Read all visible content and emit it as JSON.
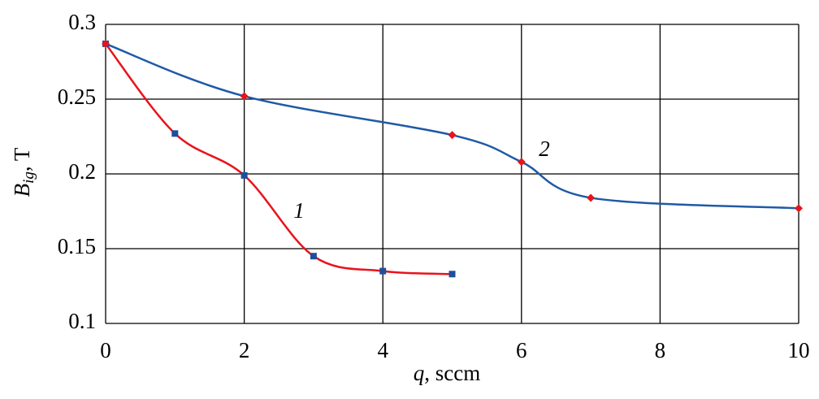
{
  "chart_data": {
    "type": "line",
    "x_label": [
      "q",
      ", sccm"
    ],
    "y_label": [
      "B",
      "ig",
      ", T"
    ],
    "xlim": [
      0,
      10
    ],
    "xticks": [
      0,
      2,
      4,
      6,
      8,
      10
    ],
    "ylim": [
      0.1,
      0.3
    ],
    "yticks": [
      0.1,
      0.15,
      0.2,
      0.25,
      0.3
    ],
    "grid": true,
    "series": [
      {
        "name": "1",
        "color": "#e8141c",
        "marker_color": "#1f4e9c",
        "marker": "square",
        "x": [
          0,
          1,
          2,
          3,
          4,
          5
        ],
        "values": [
          0.287,
          0.227,
          0.199,
          0.145,
          0.135,
          0.133
        ]
      },
      {
        "name": "2",
        "color": "#1f5aa6",
        "marker_color": "#e8141c",
        "marker": "diamond",
        "x": [
          0,
          2,
          5,
          6,
          7,
          10
        ],
        "values": [
          0.287,
          0.252,
          0.226,
          0.208,
          0.184,
          0.177
        ]
      }
    ]
  }
}
